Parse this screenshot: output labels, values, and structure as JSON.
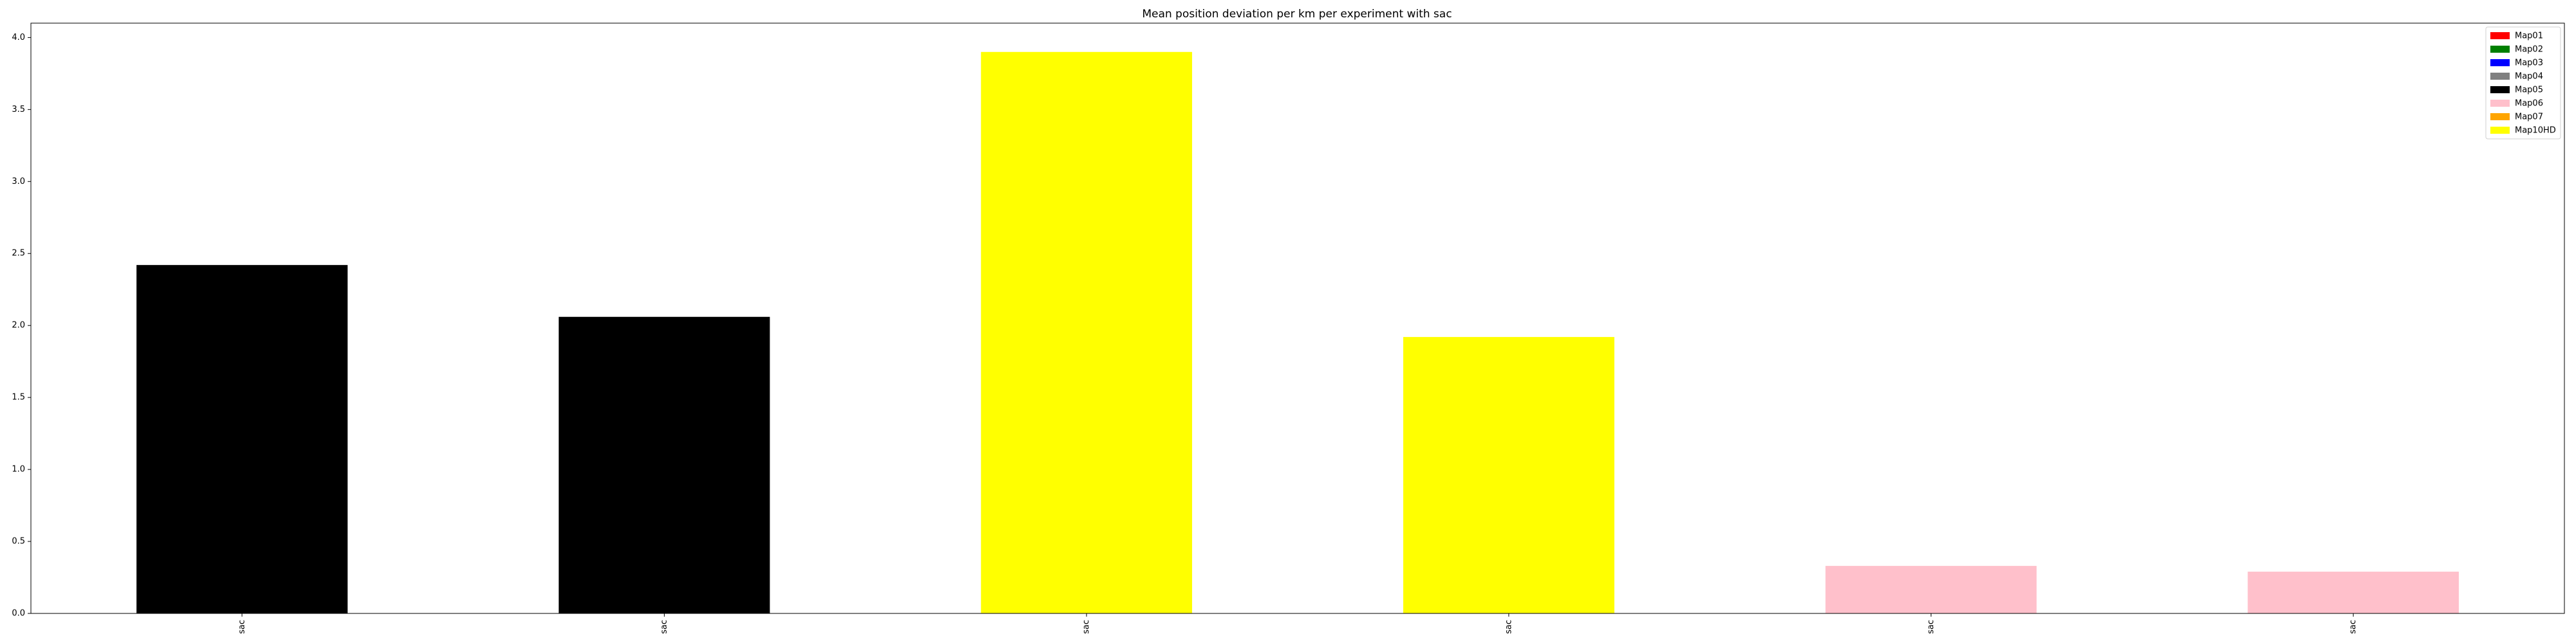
{
  "chart_data": {
    "type": "bar",
    "title": "Mean position deviation per km per experiment with sac",
    "xlabel": "",
    "ylabel": "",
    "categories": [
      "sac",
      "sac",
      "sac",
      "sac",
      "sac",
      "sac"
    ],
    "values": [
      2.42,
      2.06,
      3.9,
      1.92,
      0.33,
      0.29
    ],
    "bar_colors": [
      "#000000",
      "#000000",
      "#ffff00",
      "#ffff00",
      "#ffc0cb",
      "#ffc0cb"
    ],
    "ylim": [
      0,
      4.1
    ],
    "yticks": [
      0.0,
      0.5,
      1.0,
      1.5,
      2.0,
      2.5,
      3.0,
      3.5,
      4.0
    ],
    "ytick_labels": [
      "0.0",
      "0.5",
      "1.0",
      "1.5",
      "2.0",
      "2.5",
      "3.0",
      "3.5",
      "4.0"
    ],
    "grid": false,
    "legend_position": "top-right",
    "legend": [
      {
        "label": "Map01",
        "color": "#ff0000"
      },
      {
        "label": "Map02",
        "color": "#008000"
      },
      {
        "label": "Map03",
        "color": "#0000ff"
      },
      {
        "label": "Map04",
        "color": "#808080"
      },
      {
        "label": "Map05",
        "color": "#000000"
      },
      {
        "label": "Map06",
        "color": "#ffc0cb"
      },
      {
        "label": "Map07",
        "color": "#ffa500"
      },
      {
        "label": "Map10HD",
        "color": "#ffff00"
      }
    ]
  }
}
